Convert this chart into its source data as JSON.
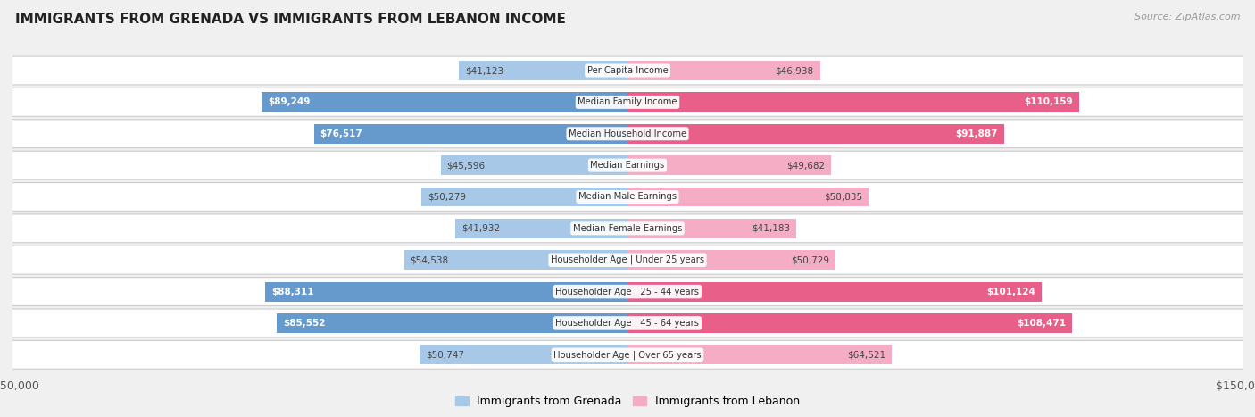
{
  "title": "IMMIGRANTS FROM GRENADA VS IMMIGRANTS FROM LEBANON INCOME",
  "source": "Source: ZipAtlas.com",
  "categories": [
    "Per Capita Income",
    "Median Family Income",
    "Median Household Income",
    "Median Earnings",
    "Median Male Earnings",
    "Median Female Earnings",
    "Householder Age | Under 25 years",
    "Householder Age | 25 - 44 years",
    "Householder Age | 45 - 64 years",
    "Householder Age | Over 65 years"
  ],
  "grenada_values": [
    41123,
    89249,
    76517,
    45596,
    50279,
    41932,
    54538,
    88311,
    85552,
    50747
  ],
  "lebanon_values": [
    46938,
    110159,
    91887,
    49682,
    58835,
    41183,
    50729,
    101124,
    108471,
    64521
  ],
  "grenada_labels": [
    "$41,123",
    "$89,249",
    "$76,517",
    "$45,596",
    "$50,279",
    "$41,932",
    "$54,538",
    "$88,311",
    "$85,552",
    "$50,747"
  ],
  "lebanon_labels": [
    "$46,938",
    "$110,159",
    "$91,887",
    "$49,682",
    "$58,835",
    "$41,183",
    "$50,729",
    "$101,124",
    "$108,471",
    "$64,521"
  ],
  "grenada_color_light": "#a8c8e8",
  "grenada_color_dark": "#6699cc",
  "lebanon_color_light": "#f4adc4",
  "lebanon_color_dark": "#e8608a",
  "max_value": 150000,
  "background_color": "#f0f0f0",
  "row_bg_color": "#ffffff",
  "row_alt_color": "#f8f8f8",
  "label_threshold": 75000,
  "legend_grenada": "Immigrants from Grenada",
  "legend_lebanon": "Immigrants from Lebanon",
  "text_dark": "#444444",
  "text_white": "#ffffff"
}
